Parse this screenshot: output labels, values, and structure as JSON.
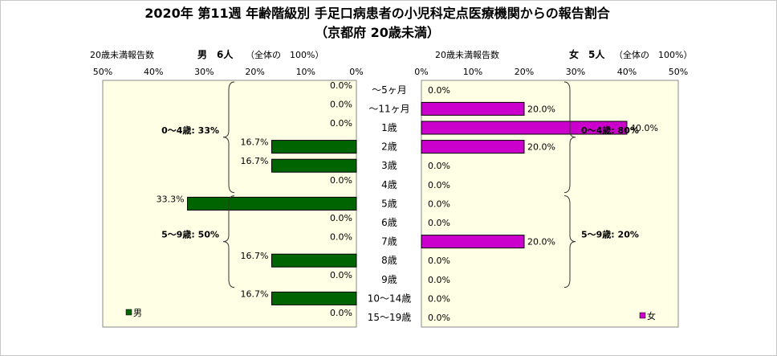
{
  "chart_data": {
    "type": "bar",
    "title": "2020年 第11週 年齢階級別 手足口病患者の小児科定点医療機関からの報告割合",
    "subtitle": "（京都府 20歳未満）",
    "categories": [
      "～5ヶ月",
      "～11ヶ月",
      "1歳",
      "2歳",
      "3歳",
      "4歳",
      "5歳",
      "6歳",
      "7歳",
      "8歳",
      "9歳",
      "10～14歳",
      "15～19歳"
    ],
    "axis_ticks": [
      "50%",
      "40%",
      "30%",
      "20%",
      "10%",
      "0%"
    ],
    "xlim": [
      0,
      50
    ],
    "series": [
      {
        "name": "男",
        "caption_label": "20歳未満報告数",
        "caption_count": "男　6人",
        "caption_total": "（全体の　100%）",
        "color": "#006400",
        "values": [
          0.0,
          0.0,
          0.0,
          16.7,
          16.7,
          0.0,
          33.3,
          0.0,
          0.0,
          16.7,
          0.0,
          16.7,
          0.0
        ],
        "groups": [
          {
            "label": "0～4歳: 33%",
            "from": 0,
            "to": 5
          },
          {
            "label": "5～9歳: 50%",
            "from": 6,
            "to": 10
          }
        ]
      },
      {
        "name": "女",
        "caption_label": "20歳未満報告数",
        "caption_count": "女　5人",
        "caption_total": "（全体の　100%）",
        "color": "#cc00cc",
        "values": [
          0.0,
          20.0,
          40.0,
          20.0,
          0.0,
          0.0,
          0.0,
          0.0,
          20.0,
          0.0,
          0.0,
          0.0,
          0.0
        ],
        "groups": [
          {
            "label": "0～4歳: 80%",
            "from": 0,
            "to": 5
          },
          {
            "label": "5～9歳: 20%",
            "from": 6,
            "to": 10
          }
        ]
      }
    ],
    "legend_placement": "bottom-left / bottom-right",
    "grid": false
  }
}
